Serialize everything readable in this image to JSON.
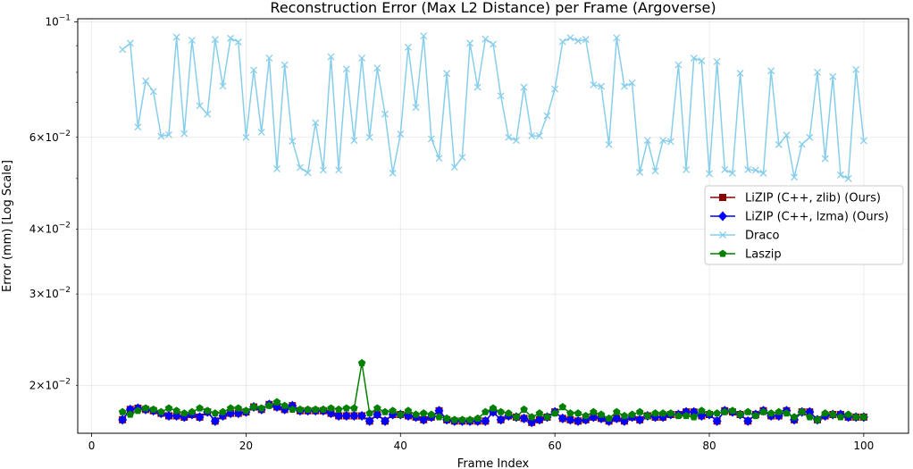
{
  "chart_data": {
    "type": "line",
    "title": "Reconstruction Error (Max L2 Distance) per Frame (Argoverse)",
    "xlabel": "Frame Index",
    "ylabel": "Error (mm) [Log Scale]",
    "xlim": [
      -1.8,
      105.8
    ],
    "ylim": [
      0.0162,
      0.1014
    ],
    "yscale": "log",
    "grid": true,
    "legend_position": "center-right",
    "x_ticks": [
      0,
      20,
      40,
      60,
      80,
      100
    ],
    "y_major_tick": {
      "value": 0.1,
      "base": "10",
      "exponent": "−1"
    },
    "y_minor_ticks": [
      {
        "value": 0.02,
        "mantissa": "2",
        "base": "10",
        "exponent": "−2"
      },
      {
        "value": 0.03,
        "mantissa": "3",
        "base": "10",
        "exponent": "−2"
      },
      {
        "value": 0.04,
        "mantissa": "4",
        "base": "10",
        "exponent": "−2"
      },
      {
        "value": 0.06,
        "mantissa": "6",
        "base": "10",
        "exponent": "−2"
      }
    ],
    "y_unlabeled_minor_ticks": [
      0.05,
      0.07,
      0.08,
      0.09
    ],
    "x": [
      4,
      5,
      6,
      7,
      8,
      9,
      10,
      11,
      12,
      13,
      14,
      15,
      16,
      17,
      18,
      19,
      20,
      21,
      22,
      23,
      24,
      25,
      26,
      27,
      28,
      29,
      30,
      31,
      32,
      33,
      34,
      35,
      36,
      37,
      38,
      39,
      40,
      41,
      42,
      43,
      44,
      45,
      46,
      47,
      48,
      49,
      50,
      51,
      52,
      53,
      54,
      55,
      56,
      57,
      58,
      59,
      60,
      61,
      62,
      63,
      64,
      65,
      66,
      67,
      68,
      69,
      70,
      71,
      72,
      73,
      74,
      75,
      76,
      77,
      78,
      79,
      80,
      81,
      82,
      83,
      84,
      85,
      86,
      87,
      88,
      89,
      90,
      91,
      92,
      93,
      94,
      95,
      96,
      97,
      98,
      99,
      100
    ],
    "series": [
      {
        "name": "LiZIP (C++, zlib) (Ours)",
        "color": "#8b0000",
        "marker": "square",
        "values": [
          0.0172,
          0.018,
          0.0181,
          0.018,
          0.0179,
          0.0177,
          0.0175,
          0.0175,
          0.0174,
          0.0176,
          0.0174,
          0.0178,
          0.0171,
          0.0175,
          0.0177,
          0.0177,
          0.0178,
          0.0182,
          0.018,
          0.0184,
          0.0182,
          0.018,
          0.0183,
          0.0179,
          0.0179,
          0.0179,
          0.0179,
          0.0177,
          0.0175,
          0.0175,
          0.0175,
          0.0175,
          0.0171,
          0.0176,
          0.0171,
          0.0176,
          0.0176,
          0.0175,
          0.0174,
          0.0172,
          0.0174,
          0.0179,
          0.0172,
          0.0171,
          0.0171,
          0.0171,
          0.0171,
          0.0171,
          0.0178,
          0.0172,
          0.0175,
          0.0174,
          0.0173,
          0.017,
          0.0172,
          0.0174,
          0.0178,
          0.0173,
          0.0172,
          0.0171,
          0.0172,
          0.0174,
          0.0173,
          0.0171,
          0.0173,
          0.0171,
          0.0174,
          0.0172,
          0.0175,
          0.0174,
          0.0174,
          0.0176,
          0.0176,
          0.0178,
          0.0178,
          0.0175,
          0.0176,
          0.0171,
          0.0179,
          0.0178,
          0.0176,
          0.0171,
          0.0176,
          0.0179,
          0.0175,
          0.0175,
          0.0179,
          0.0172,
          0.0178,
          0.0178,
          0.0172,
          0.0175,
          0.0176,
          0.0176,
          0.0174,
          0.0174,
          0.0174
        ]
      },
      {
        "name": "LiZIP (C++, lzma) (Ours)",
        "color": "#0000ff",
        "marker": "diamond",
        "values": [
          0.0172,
          0.018,
          0.0181,
          0.018,
          0.0179,
          0.0177,
          0.0175,
          0.0175,
          0.0174,
          0.0176,
          0.0174,
          0.0178,
          0.0171,
          0.0175,
          0.0177,
          0.0177,
          0.0178,
          0.0182,
          0.018,
          0.0184,
          0.0182,
          0.018,
          0.0183,
          0.0179,
          0.0179,
          0.0179,
          0.0179,
          0.0177,
          0.0175,
          0.0175,
          0.0175,
          0.0175,
          0.0171,
          0.0176,
          0.0171,
          0.0176,
          0.0176,
          0.0175,
          0.0174,
          0.0172,
          0.0174,
          0.0179,
          0.0172,
          0.0171,
          0.0171,
          0.0171,
          0.0171,
          0.0171,
          0.0178,
          0.0172,
          0.0175,
          0.0174,
          0.0173,
          0.017,
          0.0172,
          0.0174,
          0.0178,
          0.0173,
          0.0172,
          0.0171,
          0.0172,
          0.0174,
          0.0173,
          0.0171,
          0.0173,
          0.0171,
          0.0174,
          0.0172,
          0.0175,
          0.0174,
          0.0174,
          0.0176,
          0.0176,
          0.0178,
          0.0178,
          0.0175,
          0.0176,
          0.0171,
          0.0179,
          0.0178,
          0.0176,
          0.0171,
          0.0176,
          0.0179,
          0.0175,
          0.0175,
          0.0179,
          0.0172,
          0.0178,
          0.0178,
          0.0172,
          0.0175,
          0.0176,
          0.0176,
          0.0174,
          0.0174,
          0.0174
        ]
      },
      {
        "name": "Draco",
        "color": "#87ceeb",
        "marker": "x",
        "values": [
          0.0885,
          0.091,
          0.0628,
          0.077,
          0.0735,
          0.0603,
          0.0607,
          0.0935,
          0.061,
          0.0922,
          0.069,
          0.0665,
          0.0925,
          0.0753,
          0.093,
          0.0915,
          0.06,
          0.0808,
          0.0614,
          0.0852,
          0.0522,
          0.0827,
          0.059,
          0.0525,
          0.0513,
          0.064,
          0.0519,
          0.0857,
          0.0519,
          0.0812,
          0.0592,
          0.0852,
          0.06,
          0.0815,
          0.0665,
          0.0512,
          0.0609,
          0.0894,
          0.0685,
          0.094,
          0.0596,
          0.0547,
          0.0796,
          0.0526,
          0.0549,
          0.091,
          0.0749,
          0.0927,
          0.0906,
          0.0721,
          0.06,
          0.0592,
          0.0749,
          0.0604,
          0.0604,
          0.066,
          0.0743,
          0.0916,
          0.0932,
          0.0919,
          0.0925,
          0.0757,
          0.0752,
          0.0581,
          0.0932,
          0.0752,
          0.0763,
          0.0514,
          0.0592,
          0.0517,
          0.0592,
          0.0589,
          0.0827,
          0.052,
          0.0852,
          0.0842,
          0.0511,
          0.0839,
          0.052,
          0.0512,
          0.0797,
          0.052,
          0.0519,
          0.0512,
          0.0805,
          0.0581,
          0.0606,
          0.0503,
          0.0582,
          0.06,
          0.08,
          0.0546,
          0.0785,
          0.0508,
          0.05,
          0.081,
          0.0591
        ]
      },
      {
        "name": "Laszip",
        "color": "#008000",
        "marker": "pentagon",
        "values": [
          0.0178,
          0.0176,
          0.0179,
          0.0181,
          0.018,
          0.0178,
          0.0181,
          0.0179,
          0.0177,
          0.0178,
          0.0181,
          0.0179,
          0.0177,
          0.0178,
          0.0181,
          0.0181,
          0.0179,
          0.0182,
          0.0181,
          0.0183,
          0.0186,
          0.0183,
          0.018,
          0.018,
          0.018,
          0.018,
          0.018,
          0.0181,
          0.018,
          0.0181,
          0.0181,
          0.0221,
          0.0177,
          0.0181,
          0.0178,
          0.0179,
          0.0176,
          0.0179,
          0.0176,
          0.0177,
          0.0176,
          0.0174,
          0.0173,
          0.0172,
          0.0172,
          0.0172,
          0.0173,
          0.0178,
          0.0181,
          0.0178,
          0.0177,
          0.0174,
          0.018,
          0.0174,
          0.0177,
          0.0174,
          0.0177,
          0.0182,
          0.0177,
          0.0177,
          0.0175,
          0.0178,
          0.0176,
          0.0173,
          0.0178,
          0.0175,
          0.0176,
          0.0178,
          0.0175,
          0.0177,
          0.0177,
          0.0177,
          0.0175,
          0.0175,
          0.0174,
          0.0179,
          0.0177,
          0.0177,
          0.0178,
          0.0179,
          0.0176,
          0.0178,
          0.0175,
          0.0178,
          0.0177,
          0.0178,
          0.0177,
          0.0174,
          0.0178,
          0.0174,
          0.0172,
          0.0177,
          0.0176,
          0.0174,
          0.0176,
          0.0174,
          0.0174
        ]
      }
    ]
  }
}
